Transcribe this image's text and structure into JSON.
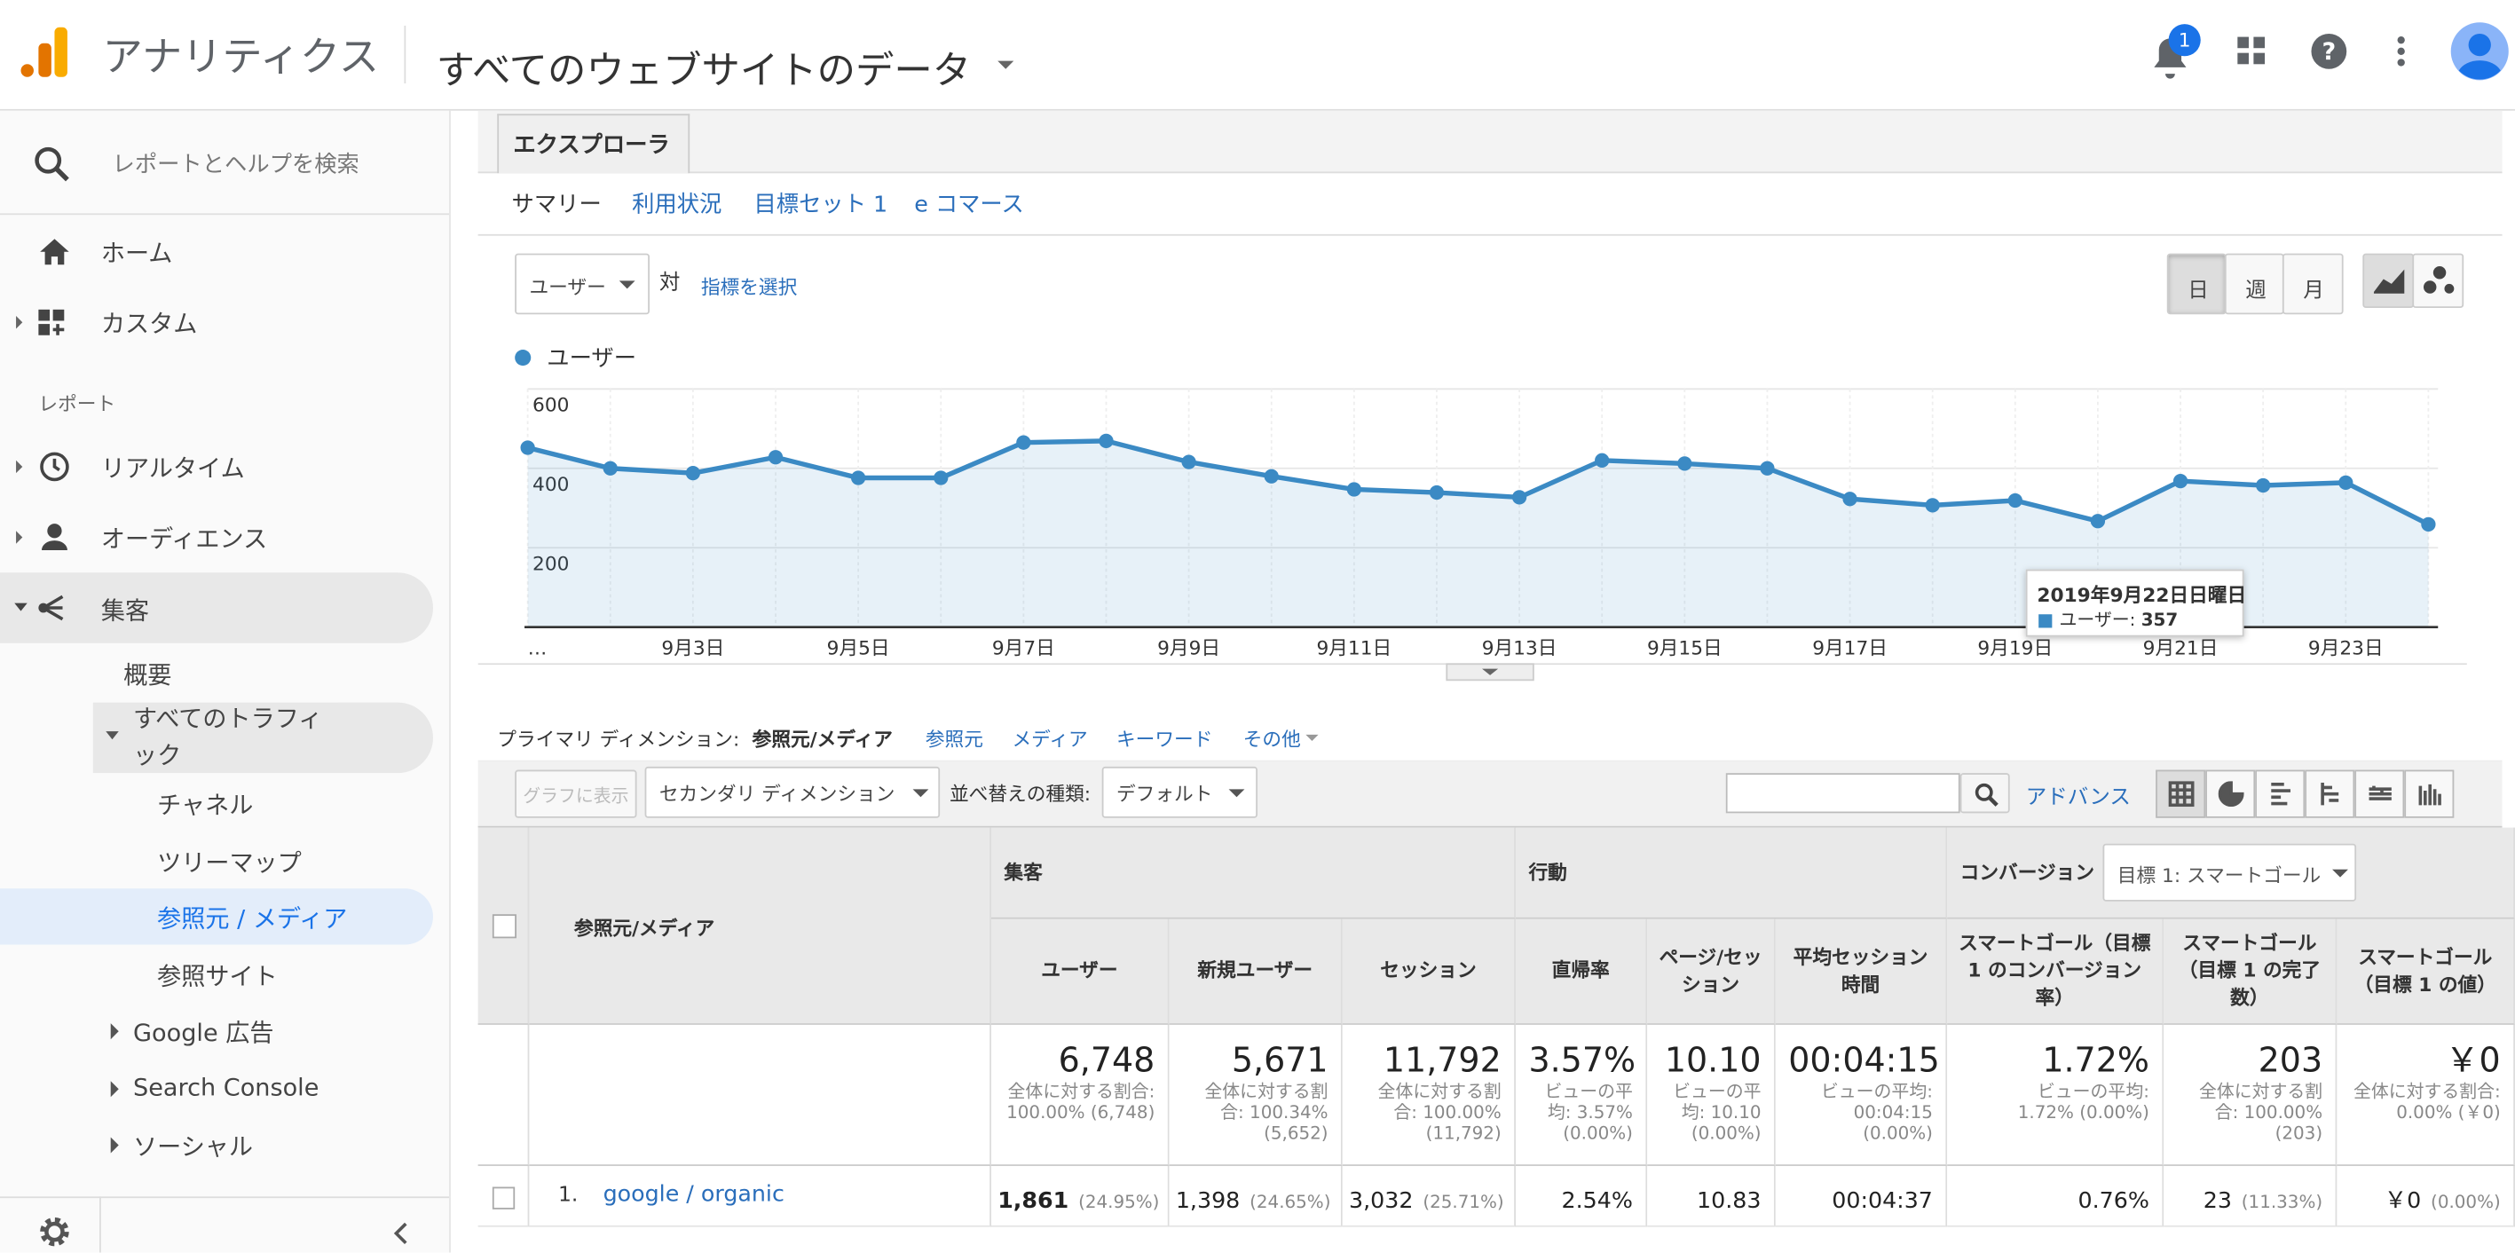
{
  "header": {
    "product": "アナリティクス",
    "view": "すべてのウェブサイトのデータ",
    "notifications": "1"
  },
  "sidebar": {
    "search": "レポートとヘルプを検索",
    "items": [
      "ホーム",
      "カスタム"
    ],
    "section": "レポート",
    "reports": [
      "リアルタイム",
      "オーディエンス",
      "集客"
    ],
    "acquisition": [
      "概要",
      "すべてのトラフィック"
    ],
    "traffic": [
      "チャネル",
      "ツリーマップ",
      "参照元 / メディア",
      "参照サイト"
    ],
    "more": [
      "Google 広告",
      "Search Console",
      "ソーシャル"
    ]
  },
  "explorer": {
    "tab": "エクスプローラ",
    "subtabs": [
      "サマリー",
      "利用状況",
      "目標セット 1",
      "e コマース"
    ],
    "metric": "ユーザー",
    "versus": "対",
    "select_metric": "指標を選択",
    "periods": [
      "日",
      "週",
      "月"
    ]
  },
  "chart_data": {
    "type": "line",
    "categories": [
      "…",
      null,
      "9月3日",
      null,
      "9月5日",
      null,
      "9月7日",
      null,
      "9月9日",
      null,
      "9月11日",
      null,
      "9月13日",
      null,
      "9月15日",
      null,
      "9月17日",
      null,
      "9月19日",
      null,
      "9月21日",
      null,
      "9月23日",
      null
    ],
    "series": [
      {
        "name": "ユーザー",
        "color": "#3b8ac4",
        "values": [
          452,
          400,
          388,
          428,
          376,
          376,
          465,
          469,
          416,
          380,
          347,
          339,
          327,
          420,
          412,
          400,
          323,
          307,
          319,
          267,
          368,
          357,
          364,
          259
        ]
      }
    ],
    "ylim": [
      0,
      600
    ],
    "yticks": [
      200,
      400,
      600
    ],
    "grid": true,
    "tooltip": {
      "title": "2019年9月22日日曜日",
      "label": "ユーザー:"
    }
  },
  "dimensions": {
    "label": "プライマリ ディメンション:",
    "current": "参照元/メディア",
    "options": [
      "参照元",
      "メディア",
      "キーワード",
      "その他"
    ]
  },
  "toolbar": {
    "plot": "グラフに表示",
    "secondary": "セカンダリ ディメンション",
    "sort_label": "並べ替えの種類:",
    "sort": "デフォルト",
    "advanced": "アドバンス"
  },
  "table": {
    "source_header": "参照元/メディア",
    "groups": [
      "集客",
      "行動",
      "コンバージョン"
    ],
    "goal_select": "目標 1: スマートゴール",
    "columns": [
      "ユーザー",
      "新規ユーザー",
      "セッション",
      "直帰率",
      "ページ/セッション",
      "平均セッション時間",
      "スマートゴール（目標 1 のコンバージョン率）",
      "スマートゴール（目標 1 の完了数）",
      "スマートゴール（目標 1 の値）"
    ],
    "totals": [
      {
        "value": "6,748",
        "note": "全体に対する割合: 100.00% (6,748)"
      },
      {
        "value": "5,671",
        "note": "全体に対する割合: 100.34% (5,652)"
      },
      {
        "value": "11,792",
        "note": "全体に対する割合: 100.00% (11,792)"
      },
      {
        "value": "3.57%",
        "note": "ビューの平均: 3.57% (0.00%)"
      },
      {
        "value": "10.10",
        "note": "ビューの平均: 10.10 (0.00%)"
      },
      {
        "value": "00:04:15",
        "note": "ビューの平均: 00:04:15 (0.00%)"
      },
      {
        "value": "1.72%",
        "note": "ビューの平均: 1.72% (0.00%)"
      },
      {
        "value": "203",
        "note": "全体に対する割合: 100.00% (203)"
      },
      {
        "value": "￥0",
        "note": "全体に対する割合: 0.00% (￥0)"
      }
    ],
    "rows": [
      {
        "index": "1.",
        "source": "google / organic",
        "cells": [
          {
            "value": "1,861",
            "pct": "(24.95%)"
          },
          {
            "value": "1,398",
            "pct": "(24.65%)"
          },
          {
            "value": "3,032",
            "pct": "(25.71%)"
          },
          {
            "value": "2.54%"
          },
          {
            "value": "10.83"
          },
          {
            "value": "00:04:37"
          },
          {
            "value": "0.76%"
          },
          {
            "value": "23",
            "pct": "(11.33%)"
          },
          {
            "value": "￥0",
            "pct": "(0.00%)"
          }
        ]
      }
    ]
  }
}
